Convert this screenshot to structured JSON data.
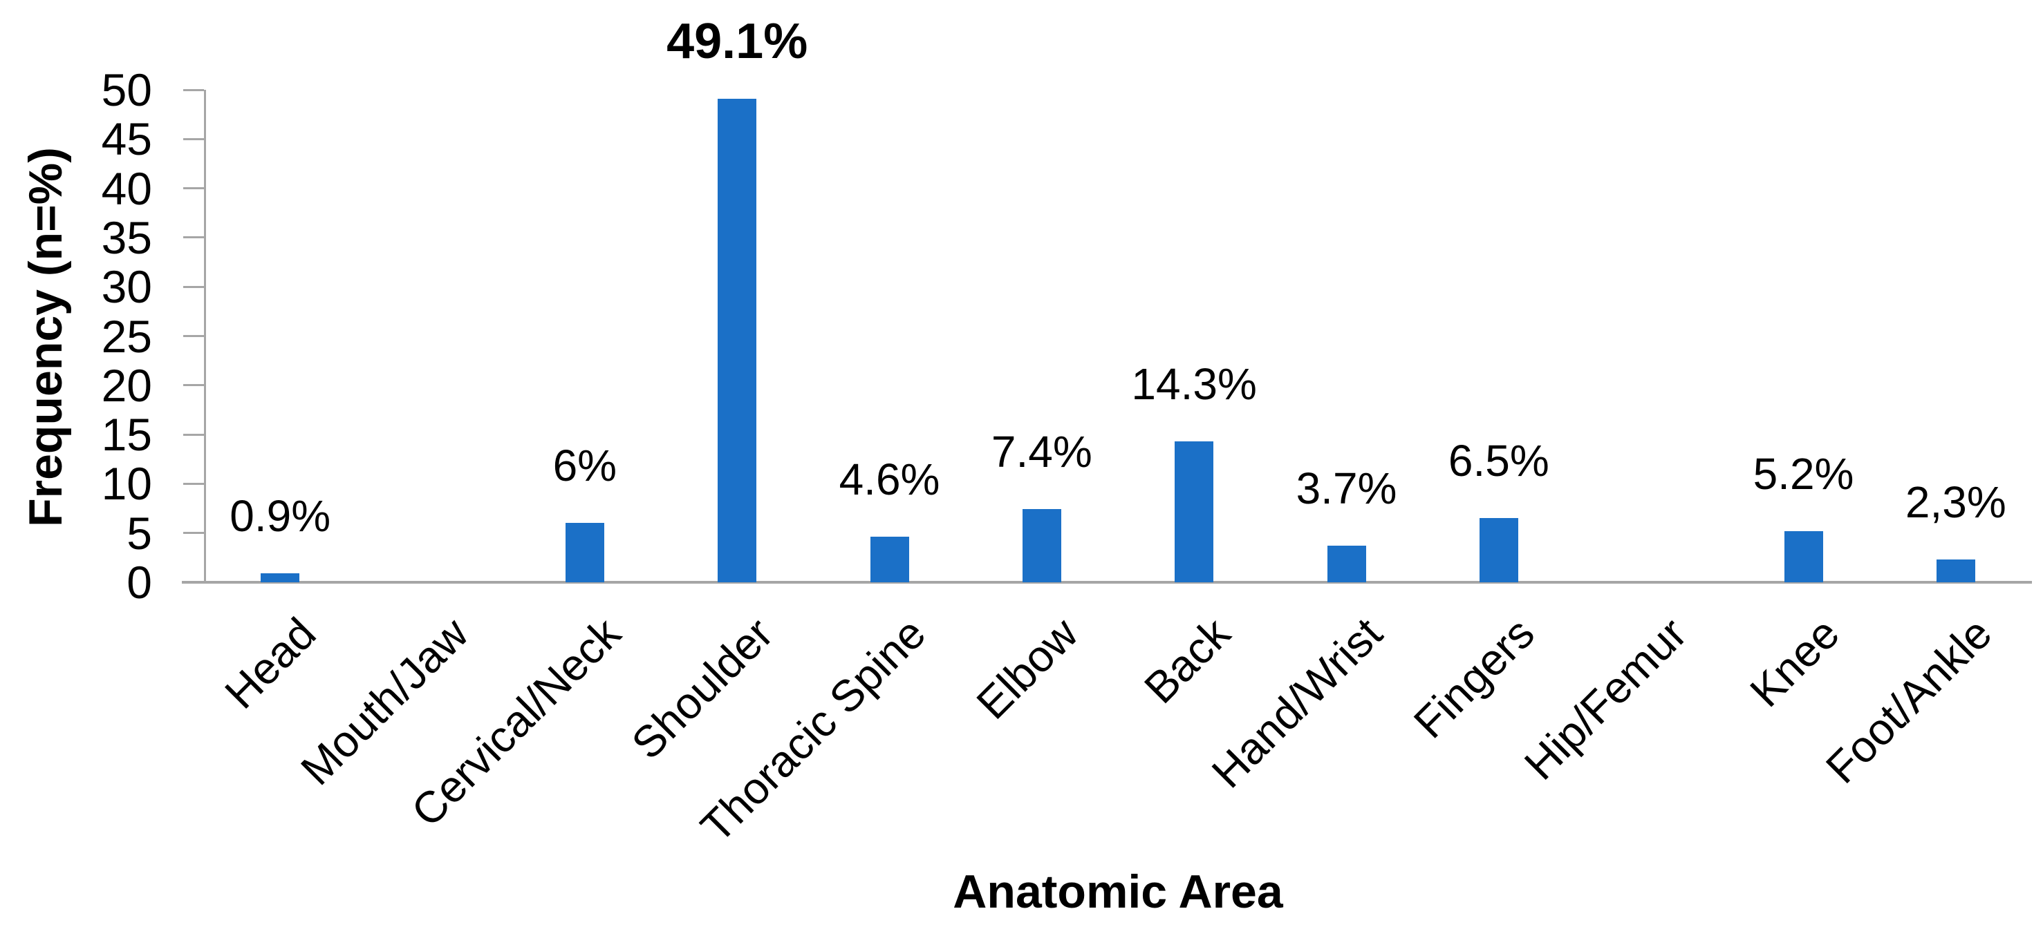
{
  "chart_data": {
    "type": "bar",
    "title": "",
    "xlabel": "Anatomic Area",
    "ylabel": "Frequency (n=%)",
    "categories": [
      "Head",
      "Mouth/Jaw",
      "Cervical/Neck",
      "Shoulder",
      "Thoracic Spine",
      "Elbow",
      "Back",
      "Hand/Wrist",
      "Fingers",
      "Hip/Femur",
      "Knee",
      "Foot/Ankle"
    ],
    "values": [
      0.9,
      0,
      6,
      49.1,
      4.6,
      7.4,
      14.3,
      3.7,
      6.5,
      0,
      5.2,
      2.3
    ],
    "bar_labels": [
      "0.9%",
      "",
      "6%",
      "49.1%",
      "4.6%",
      "7.4%",
      "14.3%",
      "3.7%",
      "6.5%",
      "",
      "5.2%",
      "2,3%"
    ],
    "emphasized_label": "49.1%",
    "emphasized_index": 3,
    "ylim": [
      0,
      50
    ],
    "yticks": [
      0,
      5,
      10,
      15,
      20,
      25,
      30,
      35,
      40,
      45,
      50
    ],
    "grid": false,
    "legend": false,
    "x_label_rotation_deg": 45,
    "colors": {
      "bar": "#1B70C7",
      "axis": "#A6A6A6",
      "text": "#000000"
    }
  }
}
